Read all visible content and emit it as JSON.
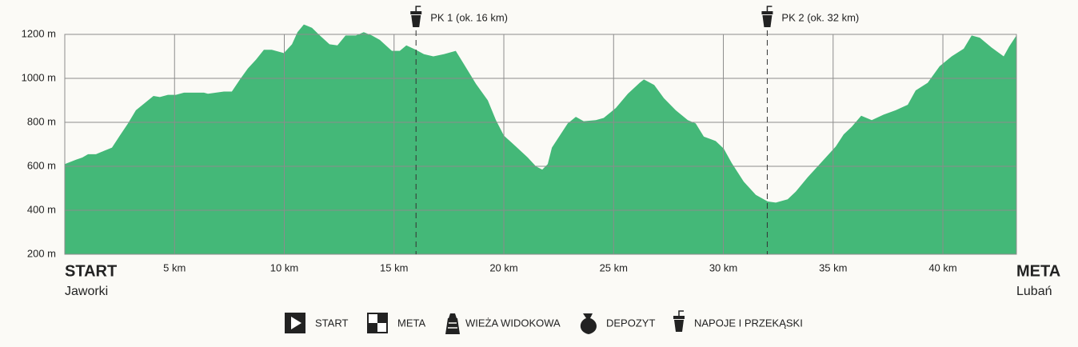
{
  "chart_data": {
    "type": "area",
    "x": [
      0,
      0.51,
      0.8,
      1.06,
      1.42,
      1.78,
      2.15,
      2.51,
      2.88,
      3.24,
      3.61,
      4.04,
      4.33,
      4.7,
      5.06,
      5.43,
      6.34,
      6.52,
      7.25,
      7.61,
      7.98,
      8.34,
      8.71,
      9.07,
      9.43,
      9.98,
      10.35,
      10.6,
      10.89,
      11.26,
      11.62,
      12.06,
      12.42,
      12.79,
      13.26,
      13.62,
      13.99,
      14.35,
      14.9,
      15.26,
      15.56,
      15.99,
      16.36,
      16.79,
      17.27,
      17.81,
      18.18,
      18.73,
      19.27,
      19.64,
      20.0,
      20.55,
      21.09,
      21.46,
      21.75,
      22.0,
      22.19,
      22.55,
      22.91,
      23.28,
      23.64,
      24.19,
      24.55,
      25.1,
      25.65,
      26.19,
      26.38,
      26.85,
      27.29,
      27.83,
      28.38,
      28.74,
      29.11,
      29.65,
      30.02,
      30.38,
      30.93,
      31.48,
      32.02,
      32.39,
      32.93,
      33.3,
      33.84,
      34.39,
      35.12,
      35.48,
      35.85,
      36.28,
      36.76,
      37.3,
      37.85,
      38.4,
      38.76,
      39.31,
      39.85,
      40.4,
      40.95,
      41.31,
      41.68,
      42.22,
      42.77,
      43.02,
      43.35
    ],
    "values": [
      610,
      630,
      640,
      655,
      655,
      670,
      685,
      740,
      795,
      855,
      885,
      920,
      915,
      925,
      925,
      935,
      935,
      930,
      940,
      940,
      995,
      1045,
      1085,
      1130,
      1130,
      1115,
      1155,
      1210,
      1245,
      1230,
      1195,
      1155,
      1150,
      1195,
      1195,
      1210,
      1195,
      1175,
      1125,
      1125,
      1150,
      1130,
      1110,
      1100,
      1110,
      1125,
      1065,
      975,
      900,
      810,
      740,
      690,
      640,
      600,
      585,
      610,
      685,
      740,
      795,
      825,
      805,
      810,
      820,
      865,
      930,
      980,
      995,
      970,
      910,
      855,
      810,
      795,
      735,
      715,
      680,
      615,
      530,
      470,
      440,
      435,
      450,
      485,
      550,
      610,
      690,
      745,
      780,
      830,
      810,
      835,
      855,
      880,
      945,
      980,
      1055,
      1100,
      1135,
      1195,
      1185,
      1140,
      1100,
      1145,
      1195
    ],
    "color": "#44b878",
    "xlim": [
      0,
      43.35
    ],
    "ylim": [
      200,
      1200
    ],
    "xticks": [
      {
        "value": 5,
        "label": "5 km"
      },
      {
        "value": 10,
        "label": "10 km"
      },
      {
        "value": 15,
        "label": "15 km"
      },
      {
        "value": 20,
        "label": "20 km"
      },
      {
        "value": 25,
        "label": "25 km"
      },
      {
        "value": 30,
        "label": "30 km"
      },
      {
        "value": 35,
        "label": "35 km"
      },
      {
        "value": 40,
        "label": "40 km"
      }
    ],
    "yticks": [
      {
        "value": 200,
        "label": "200 m"
      },
      {
        "value": 400,
        "label": "400 m"
      },
      {
        "value": 600,
        "label": "600 m"
      },
      {
        "value": 800,
        "label": "800 m"
      },
      {
        "value": 1000,
        "label": "1000 m"
      },
      {
        "value": 1200,
        "label": "1200 m"
      }
    ],
    "grid": true,
    "start": {
      "label": "START",
      "place": "Jaworki"
    },
    "finish": {
      "label": "META",
      "place": "Lubań"
    },
    "checkpoints": [
      {
        "x": 16,
        "label": "PK 1 (ok. 16 km)"
      },
      {
        "x": 32,
        "label": "PK 2 (ok. 32 km)"
      }
    ],
    "legend": [
      "START",
      "META",
      "WIEŻA WIDOKOWA",
      "DEPOZYT",
      "NAPOJE I PRZEKĄSKI"
    ]
  }
}
